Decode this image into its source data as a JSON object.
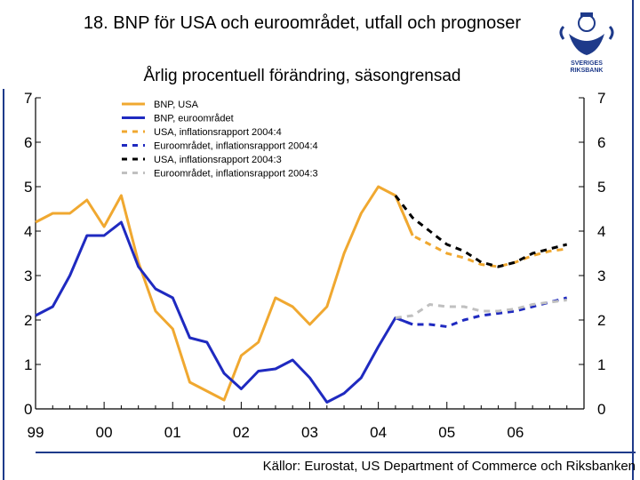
{
  "title": "18. BNP för USA och euroområdet, utfall och prognoser",
  "subtitle": "Årlig procentuell förändring, säsongrensad",
  "source": "Källor: Eurostat, US Department of Commerce och Riksbanken",
  "logo": {
    "line1": "SVERIGES",
    "line2": "RIKSBANK"
  },
  "colors": {
    "usa": "#f0a830",
    "euro": "#1f2ac0",
    "black": "#000000",
    "gray": "#c0c0c0",
    "brand": "#1e3a8a"
  },
  "chart_data": {
    "type": "line",
    "title": "18. BNP för USA och euroområdet, utfall och prognoser",
    "ylabel": "Årlig procentuell förändring, säsongrensad",
    "xlabel": "",
    "ylim": [
      0,
      7
    ],
    "yticks": [
      0,
      1,
      2,
      3,
      4,
      5,
      6,
      7
    ],
    "xlim": [
      1999.0,
      2007.0
    ],
    "xticks": [
      {
        "label": "99",
        "value": 1999.0
      },
      {
        "label": "00",
        "value": 2000.0
      },
      {
        "label": "01",
        "value": 2001.0
      },
      {
        "label": "02",
        "value": 2002.0
      },
      {
        "label": "03",
        "value": 2003.0
      },
      {
        "label": "04",
        "value": 2004.0
      },
      {
        "label": "05",
        "value": 2005.0
      },
      {
        "label": "06",
        "value": 2006.0
      }
    ],
    "legend_position": "top-left",
    "series": [
      {
        "name": "BNP, USA",
        "style": "solid",
        "color": "#f0a830",
        "x": [
          1999.0,
          1999.25,
          1999.5,
          1999.75,
          2000.0,
          2000.25,
          2000.5,
          2000.75,
          2001.0,
          2001.25,
          2001.5,
          2001.75,
          2002.0,
          2002.25,
          2002.5,
          2002.75,
          2003.0,
          2003.25,
          2003.5,
          2003.75,
          2004.0,
          2004.25,
          2004.5
        ],
        "y": [
          4.2,
          4.4,
          4.4,
          4.7,
          4.1,
          4.8,
          3.3,
          2.2,
          1.8,
          0.6,
          0.4,
          0.2,
          1.2,
          1.5,
          2.5,
          2.3,
          1.9,
          2.3,
          3.5,
          4.4,
          5.0,
          4.8,
          3.9
        ]
      },
      {
        "name": "BNP, euroområdet",
        "style": "solid",
        "color": "#1f2ac0",
        "x": [
          1999.0,
          1999.25,
          1999.5,
          1999.75,
          2000.0,
          2000.25,
          2000.5,
          2000.75,
          2001.0,
          2001.25,
          2001.5,
          2001.75,
          2002.0,
          2002.25,
          2002.5,
          2002.75,
          2003.0,
          2003.25,
          2003.5,
          2003.75,
          2004.0,
          2004.25,
          2004.5
        ],
        "y": [
          2.1,
          2.3,
          3.0,
          3.9,
          3.9,
          4.2,
          3.2,
          2.7,
          2.5,
          1.6,
          1.5,
          0.8,
          0.45,
          0.85,
          0.9,
          1.1,
          0.7,
          0.15,
          0.35,
          0.7,
          1.4,
          2.05,
          1.9
        ]
      },
      {
        "name": "USA, inflationsrapport 2004:4",
        "style": "dashed",
        "color": "#f0a830",
        "x": [
          2004.25,
          2004.5,
          2004.75,
          2005.0,
          2005.25,
          2005.5,
          2005.75,
          2006.0,
          2006.25,
          2006.5,
          2006.75
        ],
        "y": [
          4.8,
          3.9,
          3.7,
          3.5,
          3.4,
          3.25,
          3.2,
          3.3,
          3.45,
          3.55,
          3.6
        ]
      },
      {
        "name": "Euroområdet, inflationsrapport 2004:4",
        "style": "dashed",
        "color": "#1f2ac0",
        "x": [
          2004.25,
          2004.5,
          2004.75,
          2005.0,
          2005.25,
          2005.5,
          2005.75,
          2006.0,
          2006.25,
          2006.5,
          2006.75
        ],
        "y": [
          2.05,
          1.9,
          1.9,
          1.85,
          2.0,
          2.1,
          2.15,
          2.2,
          2.3,
          2.4,
          2.5
        ]
      },
      {
        "name": "USA, inflationsrapport 2004:3",
        "style": "dashed",
        "color": "#000000",
        "x": [
          2004.25,
          2004.5,
          2004.75,
          2005.0,
          2005.25,
          2005.5,
          2005.75,
          2006.0,
          2006.25,
          2006.5,
          2006.75
        ],
        "y": [
          4.8,
          4.3,
          4.0,
          3.7,
          3.55,
          3.3,
          3.2,
          3.3,
          3.5,
          3.6,
          3.7
        ]
      },
      {
        "name": "Euroområdet, inflationsrapport 2004:3",
        "style": "dashed",
        "color": "#c0c0c0",
        "x": [
          2004.25,
          2004.5,
          2004.75,
          2005.0,
          2005.25,
          2005.5,
          2005.75,
          2006.0,
          2006.25,
          2006.5,
          2006.75
        ],
        "y": [
          2.05,
          2.1,
          2.35,
          2.3,
          2.3,
          2.2,
          2.2,
          2.25,
          2.35,
          2.4,
          2.45
        ]
      }
    ]
  }
}
